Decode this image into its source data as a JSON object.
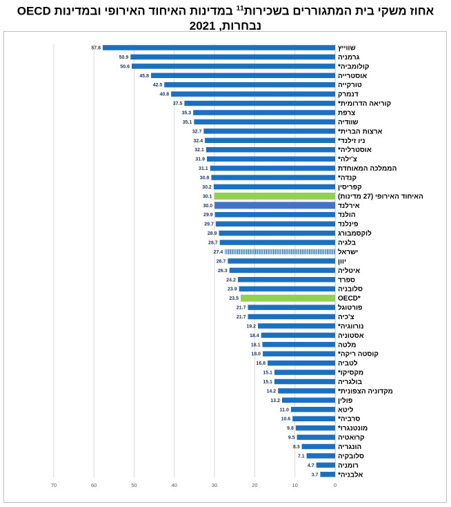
{
  "title": {
    "line1": "אחוז משקי בית המתגוררים בשכירות",
    "footnote_ref": "11",
    "line1_rest": " במדינות האיחוד האירופי ובמדינות OECD",
    "line2": "נבחרות, 2021"
  },
  "colors": {
    "bar": "#1b70c2",
    "highlight_green": "#92d050",
    "ireland": "#4472c4",
    "israel_pattern": "#1b70c2",
    "grid": "#d9d9d9",
    "axis_text": "#595959"
  },
  "chart_data": {
    "type": "bar",
    "orientation": "horizontal",
    "x_direction": "reversed",
    "xlim": [
      0,
      70
    ],
    "x_ticks": [
      "0",
      "10",
      "20",
      "30",
      "40",
      "50",
      "60",
      "70"
    ],
    "grid": true,
    "categories": [
      "שווייץ",
      "גרמניה",
      "קולומביה*",
      "אוסטרייה",
      "טורקייה",
      "דנמרק",
      "קוריאה הדרומית*",
      "צרפת",
      "שוודיה",
      "ארצות הברית*",
      "ניו זילנד*",
      "אוסטרליה*",
      "צ'ילה*",
      "הממלכה המאוחדת",
      "קנדה*",
      "קפריסין",
      "האיחוד האירופי (27 מדינות)",
      "אירלנד",
      "הולנד",
      "פינלנד",
      "לוקסמבורג",
      "בלגיה",
      "ישראל",
      "יוון",
      "איטליה",
      "ספרד",
      "סלובניה",
      "OECD*",
      "פורטוגל",
      "צ'כיה",
      "נורווגיה*",
      "אסטוניה",
      "מלטה",
      "קוסטה ריקה*",
      "לטביה",
      "מקסיקו*",
      "בולגריה",
      "מקדוניה הצפונית*",
      "פולין",
      "ליטא",
      "סרביה*",
      "מונטנגרו*",
      "קרואטיה",
      "הונגריה",
      "סלובקיה",
      "רומניה",
      "אלבניה*"
    ],
    "values": [
      57.8,
      50.9,
      50.6,
      45.8,
      42.5,
      40.8,
      37.5,
      35.3,
      35.1,
      32.7,
      32.4,
      32.1,
      31.9,
      31.1,
      30.8,
      30.2,
      30.1,
      30.0,
      29.9,
      29.7,
      28.9,
      28.7,
      27.4,
      26.7,
      26.3,
      24.2,
      23.9,
      23.5,
      21.7,
      21.7,
      19.2,
      18.4,
      18.1,
      18.0,
      16.8,
      15.1,
      15.1,
      14.2,
      13.2,
      11.0,
      10.6,
      9.8,
      9.5,
      8.3,
      7.1,
      4.7,
      3.7
    ],
    "value_labels": [
      "57.8",
      "50.9",
      "50.6",
      "45.8",
      "42.5",
      "40.8",
      "37.5",
      "35.3",
      "35.1",
      "32.7",
      "32.4",
      "32.1",
      "31.9",
      "31.1",
      "30.8",
      "30.2",
      "30.1",
      "30.0",
      "29.9",
      "29.7",
      "28.9",
      "28.7",
      "27.4",
      "26.7",
      "26.3",
      "24.2",
      "23.9",
      "23.5",
      "21.7",
      "21.7",
      "19.2",
      "18.4",
      "18.1",
      "18.0",
      "16.8",
      "15.1",
      "15.1",
      "14.2",
      "13.2",
      "11.0",
      "10.6",
      "9.8",
      "9.5",
      "8.3",
      "7.1",
      "4.7",
      "3.7"
    ],
    "bar_styles": {
      "האיחוד האירופי (27 מדינות)": "highlight_green",
      "OECD*": "highlight_green",
      "אירלנד": "ireland",
      "ישראל": "israel_pattern"
    }
  }
}
